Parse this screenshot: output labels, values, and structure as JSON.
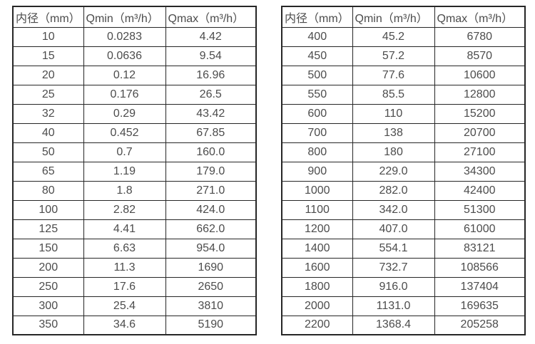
{
  "colors": {
    "background": "#ffffff",
    "border": "#262626",
    "text": "#4c4c4c"
  },
  "chart_data": [
    {
      "type": "table",
      "name": "flow-table-left",
      "headers": [
        "内径（mm）",
        "Qmin（m³/h）",
        "Qmax（m³/h）"
      ],
      "rows": [
        [
          "10",
          "0.0283",
          "4.42"
        ],
        [
          "15",
          "0.0636",
          "9.54"
        ],
        [
          "20",
          "0.12",
          "16.96"
        ],
        [
          "25",
          "0.176",
          "26.5"
        ],
        [
          "32",
          "0.29",
          "43.42"
        ],
        [
          "40",
          "0.452",
          "67.85"
        ],
        [
          "50",
          "0.7",
          "160.0"
        ],
        [
          "65",
          "1.19",
          "179.0"
        ],
        [
          "80",
          "1.8",
          "271.0"
        ],
        [
          "100",
          "2.82",
          "424.0"
        ],
        [
          "125",
          "4.41",
          "662.0"
        ],
        [
          "150",
          "6.63",
          "954.0"
        ],
        [
          "200",
          "11.3",
          "1690"
        ],
        [
          "250",
          "17.6",
          "2650"
        ],
        [
          "300",
          "25.4",
          "3810"
        ],
        [
          "350",
          "34.6",
          "5190"
        ]
      ]
    },
    {
      "type": "table",
      "name": "flow-table-right",
      "headers": [
        "内径（mm）",
        "Qmin（m³/h）",
        "Qmax（m³/h）"
      ],
      "rows": [
        [
          "400",
          "45.2",
          "6780"
        ],
        [
          "450",
          "57.2",
          "8570"
        ],
        [
          "500",
          "77.6",
          "10600"
        ],
        [
          "550",
          "85.5",
          "12800"
        ],
        [
          "600",
          "110",
          "15200"
        ],
        [
          "700",
          "138",
          "20700"
        ],
        [
          "800",
          "180",
          "27100"
        ],
        [
          "900",
          "229.0",
          "34300"
        ],
        [
          "1000",
          "282.0",
          "42400"
        ],
        [
          "1100",
          "342.0",
          "51300"
        ],
        [
          "1200",
          "407.0",
          "61000"
        ],
        [
          "1400",
          "554.1",
          "83121"
        ],
        [
          "1600",
          "732.7",
          "108566"
        ],
        [
          "1800",
          "916.0",
          "137404"
        ],
        [
          "2000",
          "1131.0",
          "169635"
        ],
        [
          "2200",
          "1368.4",
          "205258"
        ]
      ]
    }
  ]
}
